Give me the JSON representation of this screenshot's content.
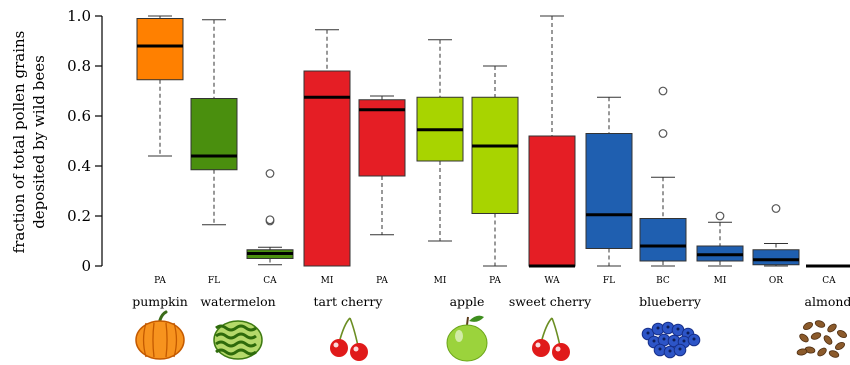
{
  "chart_data": {
    "type": "box",
    "ylabel_lines": [
      "fraction of total pollen grains",
      "deposited by wild bees"
    ],
    "ylim": [
      0,
      1
    ],
    "yticks": [
      "0",
      "0.2",
      "0.4",
      "0.6",
      "0.8",
      "1.0"
    ],
    "box_stats": [
      {
        "state": "PA",
        "crop": "pumpkin",
        "color": "#FF8000",
        "min": 0.44,
        "q1": 0.745,
        "median": 0.88,
        "q3": 0.99,
        "max": 1.0,
        "outliers": []
      },
      {
        "state": "FL",
        "crop": "watermelon",
        "color": "#4A8F0E",
        "min": 0.165,
        "q1": 0.385,
        "median": 0.44,
        "q3": 0.67,
        "max": 0.985,
        "outliers": []
      },
      {
        "state": "CA",
        "crop": "watermelon",
        "color": "#4A8F0E",
        "min": 0.005,
        "q1": 0.03,
        "median": 0.05,
        "q3": 0.065,
        "max": 0.075,
        "outliers": [
          0.18,
          0.185,
          0.37
        ]
      },
      {
        "state": "MI",
        "crop": "tart cherry",
        "color": "#E51E25",
        "min": 0.0,
        "q1": 0.0,
        "median": 0.675,
        "q3": 0.78,
        "max": 0.945,
        "outliers": []
      },
      {
        "state": "PA",
        "crop": "tart cherry",
        "color": "#E51E25",
        "min": 0.125,
        "q1": 0.36,
        "median": 0.625,
        "q3": 0.665,
        "max": 0.68,
        "outliers": []
      },
      {
        "state": "MI",
        "crop": "apple",
        "color": "#A8D400",
        "min": 0.1,
        "q1": 0.42,
        "median": 0.545,
        "q3": 0.675,
        "max": 0.905,
        "outliers": []
      },
      {
        "state": "PA",
        "crop": "apple",
        "color": "#A8D400",
        "min": 0.0,
        "q1": 0.21,
        "median": 0.48,
        "q3": 0.675,
        "max": 0.8,
        "outliers": []
      },
      {
        "state": "WA",
        "crop": "sweet cherry",
        "color": "#E51E25",
        "min": 0.0,
        "q1": 0.0,
        "median": 0.0,
        "q3": 0.52,
        "max": 1.0,
        "outliers": []
      },
      {
        "state": "FL",
        "crop": "blueberry",
        "color": "#1F5FB0",
        "min": 0.0,
        "q1": 0.07,
        "median": 0.205,
        "q3": 0.53,
        "max": 0.675,
        "outliers": []
      },
      {
        "state": "BC",
        "crop": "blueberry",
        "color": "#1F5FB0",
        "min": 0.0,
        "q1": 0.02,
        "median": 0.08,
        "q3": 0.19,
        "max": 0.355,
        "outliers": [
          0.53,
          0.7
        ]
      },
      {
        "state": "MI",
        "crop": "blueberry",
        "color": "#1F5FB0",
        "min": 0.0,
        "q1": 0.02,
        "median": 0.045,
        "q3": 0.08,
        "max": 0.175,
        "outliers": [
          0.2
        ]
      },
      {
        "state": "OR",
        "crop": "blueberry",
        "color": "#1F5FB0",
        "min": 0.0,
        "q1": 0.005,
        "median": 0.025,
        "q3": 0.065,
        "max": 0.09,
        "outliers": [
          0.23
        ]
      },
      {
        "state": "CA",
        "crop": "almond",
        "color": "#2E6FB8",
        "min": 0.0,
        "q1": 0.0,
        "median": 0.0,
        "q3": 0.0,
        "max": 0.0,
        "outliers": []
      }
    ],
    "crop_groups": [
      {
        "label": "pumpkin",
        "icon": "pumpkin-icon"
      },
      {
        "label": "watermelon",
        "icon": "watermelon-icon"
      },
      {
        "label": "tart cherry",
        "icon": "cherry-icon"
      },
      {
        "label": "apple",
        "icon": "apple-icon"
      },
      {
        "label": "sweet cherry",
        "icon": "cherry-icon"
      },
      {
        "label": "blueberry",
        "icon": "blueberry-icon"
      },
      {
        "label": "almond",
        "icon": "almond-icon"
      }
    ]
  }
}
